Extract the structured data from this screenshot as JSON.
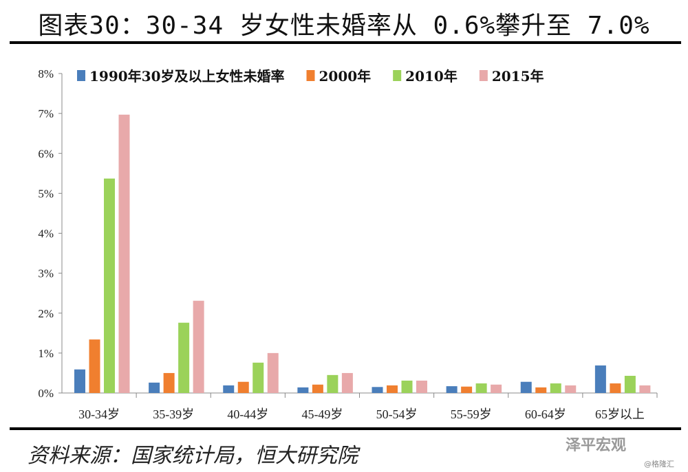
{
  "title": "图表30：30-34 岁女性未婚率从 0.6%攀升至 7.0%",
  "source": "资料来源：国家统计局，恒大研究院",
  "watermark": "泽平宏观",
  "watermark2": "@格隆汇",
  "chart_data": {
    "type": "bar",
    "categories": [
      "30-34岁",
      "35-39岁",
      "40-44岁",
      "45-49岁",
      "50-54岁",
      "55-59岁",
      "60-64岁",
      "65岁以上"
    ],
    "series": [
      {
        "name": "1990年30岁及以上女性未婚率",
        "color": "#4a7ebb",
        "values": [
          0.59,
          0.26,
          0.19,
          0.14,
          0.15,
          0.17,
          0.28,
          0.69
        ]
      },
      {
        "name": "2000年",
        "color": "#f07f2f",
        "values": [
          1.34,
          0.5,
          0.28,
          0.21,
          0.19,
          0.16,
          0.14,
          0.24
        ]
      },
      {
        "name": "2010年",
        "color": "#9bd25a",
        "values": [
          5.37,
          1.76,
          0.76,
          0.45,
          0.31,
          0.24,
          0.24,
          0.43
        ]
      },
      {
        "name": "2015年",
        "color": "#e8a9aa",
        "values": [
          6.97,
          2.31,
          1.0,
          0.5,
          0.31,
          0.21,
          0.19,
          0.19
        ]
      }
    ],
    "ylim": [
      0,
      8
    ],
    "yticks": [
      "0%",
      "1%",
      "2%",
      "3%",
      "4%",
      "5%",
      "6%",
      "7%",
      "8%"
    ],
    "ylabel": "",
    "xlabel": "",
    "grid": false,
    "legend": "top"
  }
}
